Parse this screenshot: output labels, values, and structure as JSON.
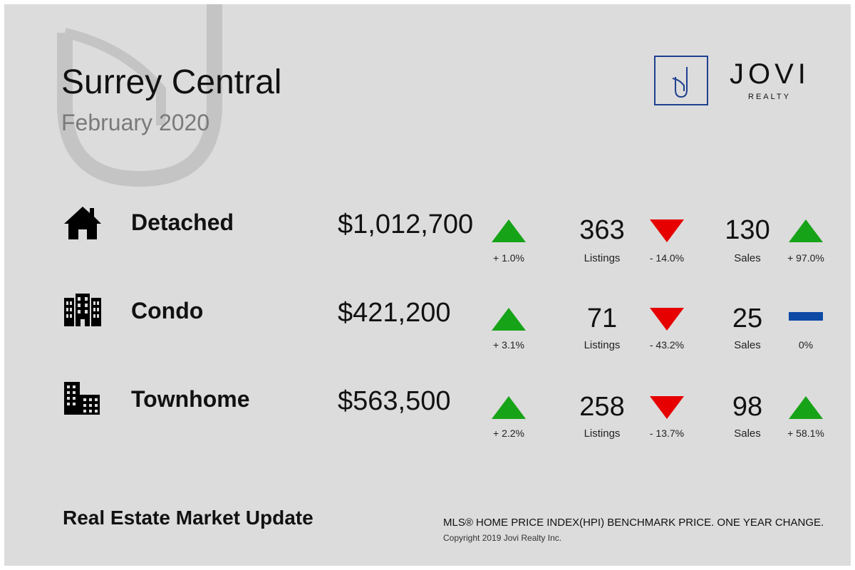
{
  "header": {
    "title": "Surrey Central",
    "subtitle": "February 2020"
  },
  "logo": {
    "mark_letter": "J",
    "name": "JOVI",
    "subname": "REALTY"
  },
  "rows": [
    {
      "type_label": "Detached",
      "icon": "house-icon",
      "price": "$1,012,700",
      "price_change": "+ 1.0%",
      "price_trend": "up",
      "listings": "363",
      "listings_label": "Listings",
      "listings_change": "- 14.0%",
      "listings_trend": "down",
      "sales": "130",
      "sales_label": "Sales",
      "sales_change": "+ 97.0%",
      "sales_trend": "up"
    },
    {
      "type_label": "Condo",
      "icon": "condo-building-icon",
      "price": "$421,200",
      "price_change": "+ 3.1%",
      "price_trend": "up",
      "listings": "71",
      "listings_label": "Listings",
      "listings_change": "- 43.2%",
      "listings_trend": "down",
      "sales": "25",
      "sales_label": "Sales",
      "sales_change": "0%",
      "sales_trend": "flat"
    },
    {
      "type_label": "Townhome",
      "icon": "townhome-building-icon",
      "price": "$563,500",
      "price_change": "+ 2.2%",
      "price_trend": "up",
      "listings": "258",
      "listings_label": "Listings",
      "listings_change": "- 13.7%",
      "listings_trend": "down",
      "sales": "98",
      "sales_label": "Sales",
      "sales_change": "+ 58.1%",
      "sales_trend": "up"
    }
  ],
  "footer": {
    "title": "Real Estate Market Update",
    "note": "MLS® HOME PRICE INDEX(HPI) BENCHMARK PRICE. ONE YEAR CHANGE.",
    "copyright": "Copyright 2019 Jovi Realty Inc."
  },
  "colors": {
    "background": "#dcdcdc",
    "up": "#17a317",
    "down": "#e60000",
    "flat": "#0c4aa6",
    "logo": "#1e3f8f"
  }
}
